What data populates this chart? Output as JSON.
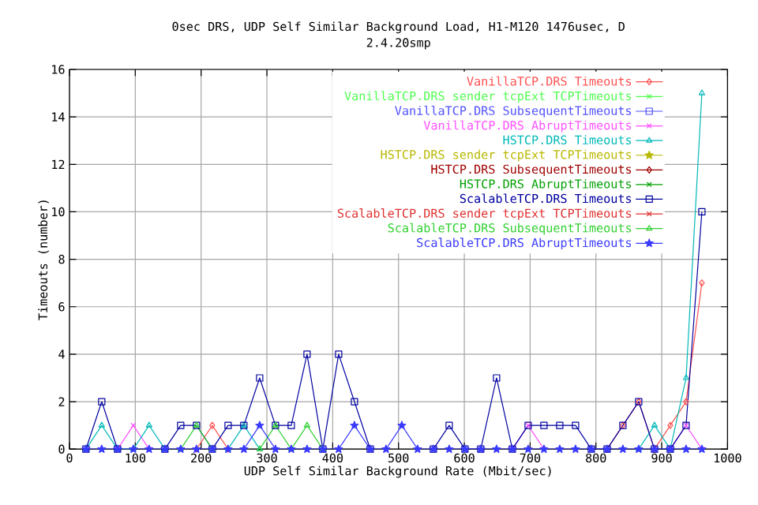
{
  "chart_data": {
    "type": "line",
    "title": "0sec DRS, UDP Self Similar Background Load, H1-M120 1476usec, D",
    "subtitle": "2.4.20smp",
    "xlabel": "UDP Self Similar Background Rate (Mbit/sec)",
    "ylabel": "Timeouts (number)",
    "x": [
      25,
      49,
      73,
      97,
      121,
      145,
      169,
      193,
      217,
      241,
      265,
      289,
      313,
      337,
      361,
      385,
      409,
      433,
      457,
      481,
      505,
      529,
      553,
      577,
      601,
      625,
      649,
      673,
      697,
      721,
      745,
      769,
      793,
      817,
      841,
      865,
      889,
      913,
      937,
      961
    ],
    "series": [
      {
        "name": "VanillaTCP.DRS Timeouts",
        "color": "#ff5050",
        "marker": "diamond",
        "values": [
          null,
          null,
          null,
          null,
          null,
          null,
          null,
          0,
          1,
          0,
          null,
          null,
          null,
          null,
          null,
          null,
          null,
          null,
          null,
          null,
          null,
          null,
          null,
          null,
          null,
          null,
          null,
          null,
          null,
          null,
          null,
          null,
          null,
          0,
          1,
          2,
          0,
          1,
          2,
          7
        ]
      },
      {
        "name": "VanillaTCP.DRS sender tcpExt TCPTimeouts",
        "color": "#50ff50",
        "marker": "cross",
        "values": [
          null,
          null,
          null,
          null,
          null,
          null,
          null,
          null,
          null,
          null,
          null,
          null,
          null,
          null,
          null,
          null,
          null,
          null,
          null,
          null,
          null,
          null,
          null,
          null,
          null,
          null,
          null,
          null,
          null,
          null,
          null,
          null,
          null,
          null,
          null,
          null,
          null,
          null,
          null,
          null
        ]
      },
      {
        "name": "VanillaTCP.DRS SubsequentTimeouts",
        "color": "#5050ff",
        "marker": "square",
        "values": [
          null,
          null,
          null,
          null,
          null,
          null,
          null,
          null,
          null,
          null,
          null,
          null,
          null,
          null,
          null,
          null,
          null,
          null,
          null,
          null,
          null,
          null,
          null,
          null,
          null,
          null,
          null,
          null,
          null,
          null,
          null,
          null,
          null,
          null,
          null,
          null,
          null,
          null,
          null,
          null
        ]
      },
      {
        "name": "VanillaTCP.DRS AbruptTimeouts",
        "color": "#ff50ff",
        "marker": "cross",
        "values": [
          null,
          null,
          0,
          1,
          0,
          null,
          null,
          null,
          null,
          null,
          null,
          null,
          null,
          null,
          null,
          null,
          null,
          null,
          null,
          null,
          null,
          null,
          null,
          null,
          null,
          null,
          null,
          0,
          1,
          0,
          null,
          null,
          null,
          null,
          null,
          null,
          null,
          0,
          1,
          0
        ]
      },
      {
        "name": "HSTCP.DRS Timeouts",
        "color": "#00b8b8",
        "marker": "triangle",
        "values": [
          0,
          1,
          0,
          0,
          1,
          0,
          null,
          null,
          null,
          0,
          1,
          0,
          null,
          null,
          null,
          null,
          null,
          null,
          null,
          null,
          null,
          null,
          null,
          null,
          null,
          null,
          null,
          null,
          null,
          null,
          null,
          null,
          null,
          null,
          null,
          0,
          1,
          0,
          3,
          15
        ]
      },
      {
        "name": "HSTCP.DRS sender tcpExt TCPTimeouts",
        "color": "#b8b800",
        "marker": "star",
        "values": [
          null,
          null,
          null,
          null,
          null,
          null,
          null,
          null,
          null,
          null,
          null,
          null,
          null,
          null,
          null,
          null,
          null,
          null,
          null,
          null,
          null,
          null,
          null,
          null,
          null,
          null,
          null,
          null,
          null,
          null,
          null,
          null,
          null,
          null,
          null,
          null,
          null,
          null,
          null,
          null
        ]
      },
      {
        "name": "HSTCP.DRS SubsequentTimeouts",
        "color": "#a00000",
        "marker": "diamond",
        "values": [
          null,
          null,
          null,
          null,
          null,
          null,
          null,
          null,
          null,
          null,
          null,
          null,
          null,
          null,
          null,
          null,
          null,
          null,
          null,
          null,
          null,
          null,
          null,
          null,
          null,
          null,
          null,
          null,
          null,
          null,
          null,
          null,
          null,
          null,
          null,
          null,
          null,
          null,
          null,
          null
        ]
      },
      {
        "name": "HSTCP.DRS AbruptTimeouts",
        "color": "#00a000",
        "marker": "cross",
        "values": [
          null,
          null,
          null,
          null,
          null,
          null,
          null,
          null,
          null,
          null,
          null,
          null,
          null,
          null,
          null,
          null,
          null,
          null,
          null,
          null,
          null,
          null,
          null,
          null,
          null,
          null,
          null,
          null,
          null,
          null,
          null,
          null,
          null,
          null,
          null,
          null,
          null,
          null,
          null,
          null
        ]
      },
      {
        "name": "ScalableTCP.DRS Timeouts",
        "color": "#0000a0",
        "marker": "square",
        "values": [
          0,
          2,
          0,
          null,
          null,
          0,
          1,
          1,
          0,
          1,
          1,
          3,
          1,
          1,
          4,
          0,
          4,
          2,
          0,
          null,
          null,
          null,
          0,
          1,
          0,
          0,
          3,
          0,
          1,
          1,
          1,
          1,
          0,
          0,
          1,
          2,
          0,
          0,
          1,
          10
        ]
      },
      {
        "name": "ScalableTCP.DRS sender tcpExt TCPTimeouts",
        "color": "#e03030",
        "marker": "cross",
        "values": [
          null,
          null,
          null,
          null,
          null,
          null,
          null,
          null,
          null,
          null,
          null,
          null,
          null,
          null,
          null,
          null,
          null,
          null,
          null,
          null,
          null,
          null,
          null,
          null,
          null,
          null,
          null,
          null,
          null,
          null,
          null,
          null,
          null,
          null,
          null,
          null,
          null,
          null,
          null,
          null
        ]
      },
      {
        "name": "ScalableTCP.DRS SubsequentTimeouts",
        "color": "#30d030",
        "marker": "triangle",
        "values": [
          null,
          null,
          null,
          null,
          null,
          null,
          0,
          1,
          0,
          null,
          null,
          0,
          1,
          0,
          1,
          0,
          null,
          null,
          null,
          null,
          null,
          null,
          null,
          null,
          null,
          null,
          null,
          null,
          null,
          null,
          null,
          null,
          null,
          null,
          null,
          null,
          null,
          null,
          null,
          null
        ]
      },
      {
        "name": "ScalableTCP.DRS AbruptTimeouts",
        "color": "#3a3aff",
        "marker": "star",
        "values": [
          0,
          0,
          0,
          0,
          0,
          0,
          0,
          0,
          0,
          0,
          0,
          1,
          0,
          0,
          0,
          0,
          0,
          1,
          0,
          0,
          1,
          0,
          0,
          0,
          0,
          0,
          0,
          0,
          0,
          0,
          0,
          0,
          0,
          0,
          0,
          0,
          0,
          0,
          0,
          0
        ]
      }
    ],
    "xlim": [
      0,
      1000
    ],
    "ylim": [
      0,
      16
    ],
    "xticks": [
      0,
      100,
      200,
      300,
      400,
      500,
      600,
      700,
      800,
      900,
      1000
    ],
    "yticks": [
      0,
      2,
      4,
      6,
      8,
      10,
      12,
      14,
      16
    ],
    "grid": true,
    "legend": "top right"
  }
}
